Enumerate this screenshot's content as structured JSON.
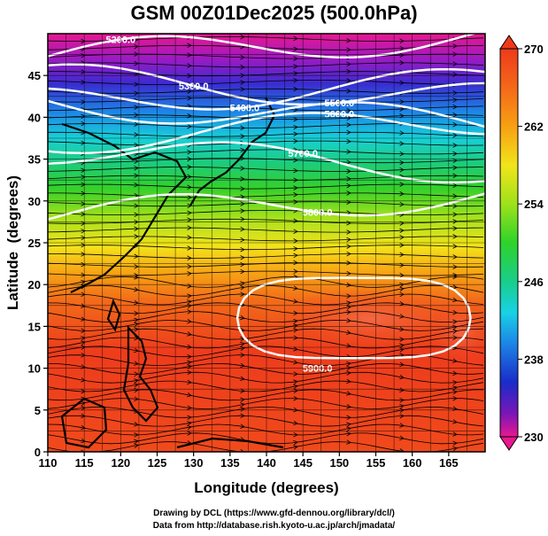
{
  "title": "GSM 00Z01Dec2025 (500.0hPa)",
  "x_axis": {
    "label": "Longitude (degrees)",
    "range": [
      110,
      170
    ],
    "ticks": [
      "110",
      "115",
      "120",
      "125",
      "130",
      "135",
      "140",
      "145",
      "150",
      "155",
      "160",
      "165"
    ]
  },
  "y_axis": {
    "label": "Latitude  (degrees)",
    "range": [
      0,
      50
    ],
    "ticks": [
      "0",
      "5",
      "10",
      "15",
      "20",
      "25",
      "30",
      "35",
      "40",
      "45"
    ]
  },
  "colorbar": {
    "range": [
      230,
      270
    ],
    "labels": [
      "270",
      "262",
      "254",
      "246",
      "238",
      "230"
    ],
    "colors": [
      "#e8188f",
      "#7a16b8",
      "#1a2cc8",
      "#1c84e6",
      "#18d2e6",
      "#19ce8a",
      "#2ed22a",
      "#9ee21a",
      "#f2e41a",
      "#f7a012",
      "#f4681a",
      "#ee3a1a"
    ]
  },
  "contours": [
    {
      "label": "5200.0",
      "lat": 48.5
    },
    {
      "label": "5300.0",
      "lat": 43.5
    },
    {
      "label": "5400.0",
      "lat": 43
    },
    {
      "label": "5500.0",
      "lat": 40.5
    },
    {
      "label": "5600.0",
      "lat": 38.5
    },
    {
      "label": "5700.0",
      "lat": 35
    },
    {
      "label": "5800.0",
      "lat": 29.5
    },
    {
      "label": "5900.0",
      "lat": 10
    }
  ],
  "contour_labels": [
    "5200.0",
    "5300.0",
    "5400.0",
    "5500.0",
    "5600.0",
    "5700.0",
    "5800.0",
    "5900.0"
  ],
  "credit_line1": "Drawing by DCL (https://www.gfd-dennou.org/library/dcl/)",
  "credit_line2": "Data from http://database.rish.kyoto-u.ac.jp/arch/jmadata/"
}
